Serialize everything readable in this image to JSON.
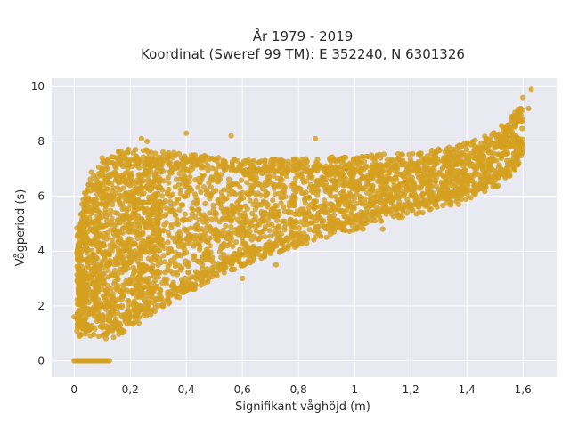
{
  "chart_data": {
    "type": "scatter",
    "title_lines": [
      "År 1979 - 2019",
      "Koordinat (Sweref 99 TM): E 352240, N 6301326"
    ],
    "xlabel": "Signifikant våghöjd (m)",
    "ylabel": "Vågperiod (s)",
    "xlim": [
      -0.08,
      1.72
    ],
    "ylim": [
      -0.6,
      10.3
    ],
    "x_ticks": [
      0,
      0.2,
      0.4,
      0.6,
      0.8,
      1,
      1.2,
      1.4,
      1.6
    ],
    "x_tick_labels": [
      "0",
      "0,2",
      "0,4",
      "0,6",
      "0,8",
      "1",
      "1,2",
      "1,4",
      "1,6"
    ],
    "y_ticks": [
      0,
      2,
      4,
      6,
      8,
      10
    ],
    "y_tick_labels": [
      "0",
      "2",
      "4",
      "6",
      "8",
      "10"
    ],
    "grid": true,
    "colors": {
      "point": "#d4a020",
      "plot_bg": "#e9e9f1",
      "grid": "#ffffff"
    },
    "envelope": {
      "x": [
        0.01,
        0.05,
        0.1,
        0.15,
        0.2,
        0.3,
        0.4,
        0.5,
        0.6,
        0.7,
        0.8,
        0.9,
        1.0,
        1.1,
        1.2,
        1.3,
        1.4,
        1.5,
        1.55,
        1.6
      ],
      "upper": [
        4.5,
        6.4,
        7.0,
        7.3,
        7.4,
        7.3,
        7.2,
        7.1,
        7.0,
        7.0,
        7.0,
        7.1,
        7.1,
        7.2,
        7.2,
        7.4,
        7.6,
        8.0,
        8.5,
        9.0
      ],
      "lower": [
        1.2,
        1.1,
        1.1,
        1.2,
        1.5,
        2.2,
        2.8,
        3.3,
        3.8,
        4.2,
        4.5,
        4.9,
        5.1,
        5.4,
        5.6,
        5.9,
        6.2,
        6.6,
        7.0,
        7.6
      ]
    },
    "zero_cluster": {
      "x_range": [
        0.0,
        0.13
      ],
      "y": 0
    },
    "outliers": [
      {
        "x": 0.0,
        "y": 1.6
      },
      {
        "x": 0.1,
        "y": 7.4
      },
      {
        "x": 0.24,
        "y": 8.1
      },
      {
        "x": 0.26,
        "y": 8.0
      },
      {
        "x": 0.4,
        "y": 8.3
      },
      {
        "x": 0.56,
        "y": 8.2
      },
      {
        "x": 0.86,
        "y": 8.1
      },
      {
        "x": 0.72,
        "y": 3.5
      },
      {
        "x": 0.9,
        "y": 4.5
      },
      {
        "x": 1.03,
        "y": 4.8
      },
      {
        "x": 1.1,
        "y": 4.8
      },
      {
        "x": 0.6,
        "y": 3.0
      },
      {
        "x": 1.37,
        "y": 5.7
      },
      {
        "x": 1.6,
        "y": 9.6
      },
      {
        "x": 1.63,
        "y": 9.9
      },
      {
        "x": 1.62,
        "y": 9.2
      }
    ]
  }
}
